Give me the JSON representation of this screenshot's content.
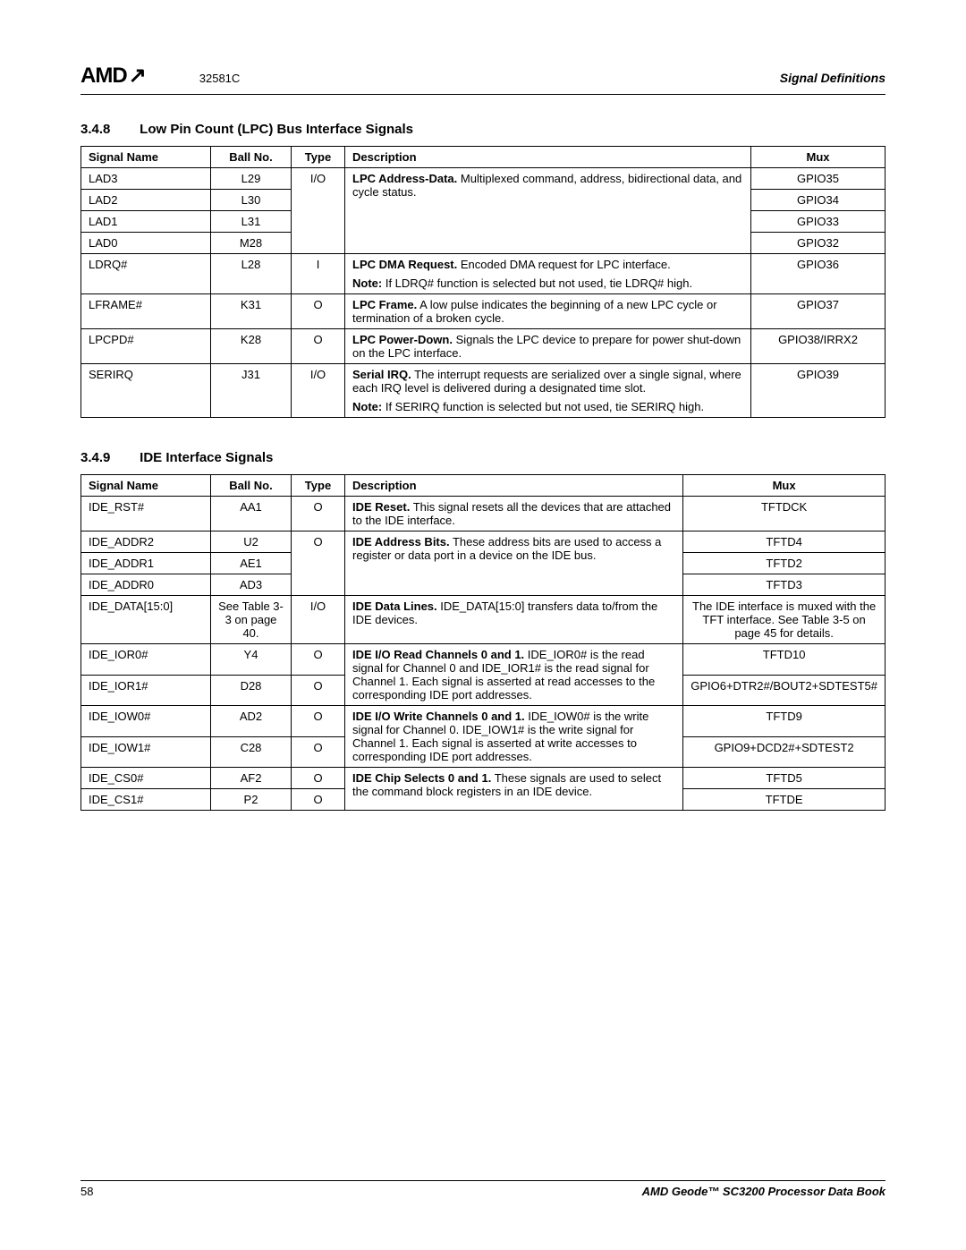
{
  "header": {
    "logo_text": "AMD",
    "logo_arrow": "↗",
    "doc_number": "32581C",
    "right_title": "Signal Definitions"
  },
  "section1": {
    "number": "3.4.8",
    "title": "Low Pin Count (LPC) Bus Interface Signals",
    "columns": {
      "signal": "Signal Name",
      "ball": "Ball No.",
      "type": "Type",
      "desc": "Description",
      "mux": "Mux"
    },
    "lad_desc_bold": "LPC Address-Data.",
    "lad_desc_rest": " Multiplexed command, address, bidirectional data, and cycle status.",
    "rows": {
      "lad3": {
        "signal": "LAD3",
        "ball": "L29",
        "type": "I/O",
        "mux": "GPIO35"
      },
      "lad2": {
        "signal": "LAD2",
        "ball": "L30",
        "mux": "GPIO34"
      },
      "lad1": {
        "signal": "LAD1",
        "ball": "L31",
        "mux": "GPIO33"
      },
      "lad0": {
        "signal": "LAD0",
        "ball": "M28",
        "mux": "GPIO32"
      },
      "ldrq": {
        "signal": "LDRQ#",
        "ball": "L28",
        "type": "I",
        "mux": "GPIO36",
        "desc_bold": "LPC DMA Request.",
        "desc_rest": " Encoded DMA request for LPC interface.",
        "note_label": "Note:",
        "note_text": "If LDRQ# function is selected but not used, tie LDRQ# high."
      },
      "lframe": {
        "signal": "LFRAME#",
        "ball": "K31",
        "type": "O",
        "mux": "GPIO37",
        "desc_bold": "LPC Frame.",
        "desc_rest": " A low pulse indicates the beginning of a new LPC cycle or termination of a broken cycle."
      },
      "lpcpd": {
        "signal": "LPCPD#",
        "ball": "K28",
        "type": "O",
        "mux": "GPIO38/IRRX2",
        "desc_bold": "LPC Power-Down.",
        "desc_rest": " Signals the LPC device to prepare for power shut-down on the LPC interface."
      },
      "serirq": {
        "signal": "SERIRQ",
        "ball": "J31",
        "type": "I/O",
        "mux": "GPIO39",
        "desc_bold": "Serial IRQ.",
        "desc_rest": " The interrupt requests are serialized over a single signal, where each IRQ level is delivered during a designated time slot.",
        "note_label": "Note:",
        "note_text": "If SERIRQ function is selected but not used, tie SERIRQ high."
      }
    }
  },
  "section2": {
    "number": "3.4.9",
    "title": "IDE Interface Signals",
    "columns": {
      "signal": "Signal Name",
      "ball": "Ball No.",
      "type": "Type",
      "desc": "Description",
      "mux": "Mux"
    },
    "rows": {
      "ide_rst": {
        "signal": "IDE_RST#",
        "ball": "AA1",
        "type": "O",
        "mux": "TFTDCK",
        "desc_bold": "IDE Reset.",
        "desc_rest": " This signal resets all the devices that are attached to the IDE interface."
      },
      "addr_desc_bold": "IDE Address Bits.",
      "addr_desc_rest": " These address bits are used to access a register or data port in a device on the IDE bus.",
      "ide_addr2": {
        "signal": "IDE_ADDR2",
        "ball": "U2",
        "type": "O",
        "mux": "TFTD4"
      },
      "ide_addr1": {
        "signal": "IDE_ADDR1",
        "ball": "AE1",
        "mux": "TFTD2"
      },
      "ide_addr0": {
        "signal": "IDE_ADDR0",
        "ball": "AD3",
        "mux": "TFTD3"
      },
      "ide_data": {
        "signal": "IDE_DATA[15:0]",
        "ball": "See Table 3-3 on page 40.",
        "type": "I/O",
        "mux": "The IDE interface is muxed with the TFT interface. See Table 3-5 on page 45 for details.",
        "desc_bold": "IDE Data Lines.",
        "desc_rest": " IDE_DATA[15:0] transfers data to/from the IDE devices."
      },
      "ior_desc_bold": "IDE I/O Read Channels 0 and 1.",
      "ior_desc_rest": " IDE_IOR0# is the read signal for Channel 0 and IDE_IOR1# is the read signal for Channel 1. Each signal is asserted at read accesses to the corresponding IDE port addresses.",
      "ide_ior0": {
        "signal": "IDE_IOR0#",
        "ball": "Y4",
        "type": "O",
        "mux": "TFTD10"
      },
      "ide_ior1": {
        "signal": "IDE_IOR1#",
        "ball": "D28",
        "type": "O",
        "mux": "GPIO6+DTR2#/BOUT2+SDTEST5#"
      },
      "iow_desc_bold": "IDE I/O Write Channels 0 and 1.",
      "iow_desc_rest": " IDE_IOW0# is the write signal for Channel 0. IDE_IOW1# is the write signal for Channel 1. Each signal is asserted at write accesses to corresponding IDE port addresses.",
      "ide_iow0": {
        "signal": "IDE_IOW0#",
        "ball": "AD2",
        "type": "O",
        "mux": "TFTD9"
      },
      "ide_iow1": {
        "signal": "IDE_IOW1#",
        "ball": "C28",
        "type": "O",
        "mux": "GPIO9+DCD2#+SDTEST2"
      },
      "cs_desc_bold": "IDE Chip Selects 0 and 1.",
      "cs_desc_rest": " These signals are used to select the command block registers in an IDE device.",
      "ide_cs0": {
        "signal": "IDE_CS0#",
        "ball": "AF2",
        "type": "O",
        "mux": "TFTD5"
      },
      "ide_cs1": {
        "signal": "IDE_CS1#",
        "ball": "P2",
        "type": "O",
        "mux": "TFTDE"
      }
    }
  },
  "footer": {
    "page": "58",
    "book": "AMD Geode™ SC3200 Processor Data Book"
  }
}
